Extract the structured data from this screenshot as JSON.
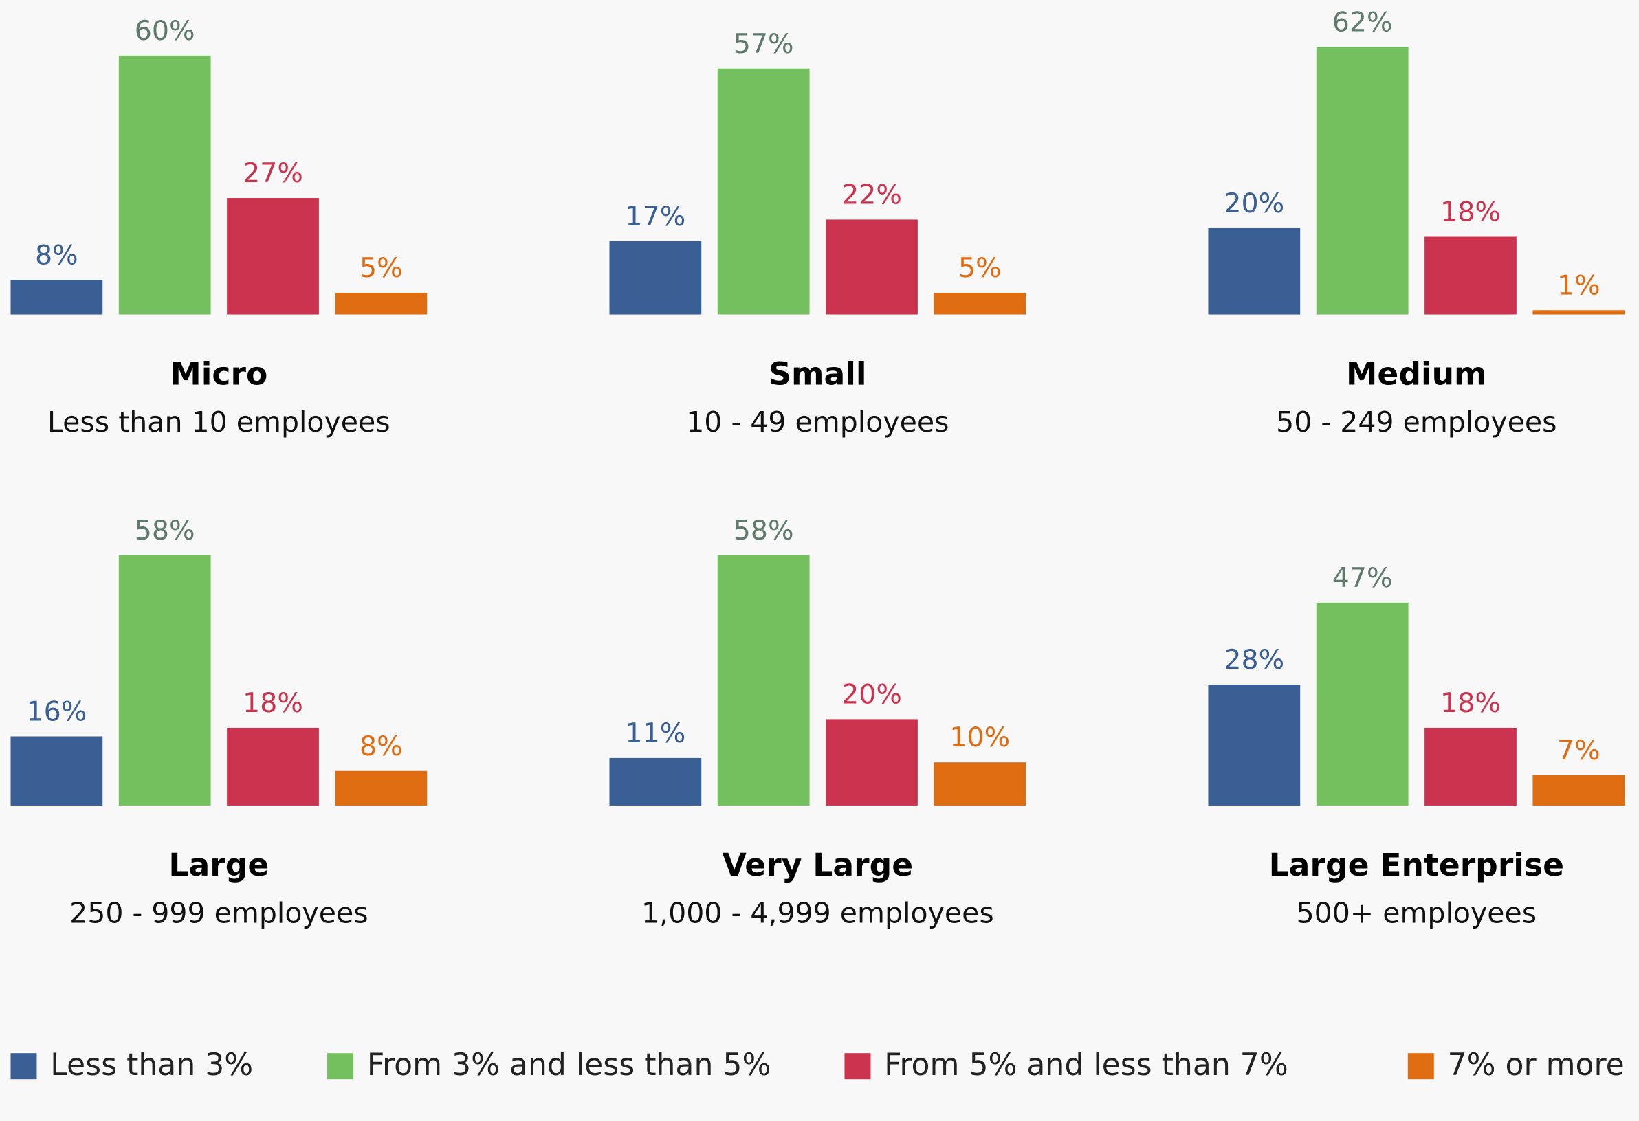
{
  "chart_data": {
    "type": "bar",
    "series": [
      {
        "name": "Less than 3%",
        "color": "#3a5f94",
        "label_color": "#3a5f94"
      },
      {
        "name": "From 3% and less than 5%",
        "color": "#74c05e",
        "label_color": "#5e7a6c"
      },
      {
        "name": "From 5% and less than 7%",
        "color": "#cc334e",
        "label_color": "#cc334e"
      },
      {
        "name": "7% or more",
        "color": "#e06c12",
        "label_color": "#e06c12"
      }
    ],
    "panels": [
      {
        "title": "Micro",
        "subtitle": "Less than 10 employees",
        "values": [
          8,
          60,
          27,
          5
        ],
        "value_labels": [
          "8%",
          "60%",
          "27%",
          "5%"
        ]
      },
      {
        "title": "Small",
        "subtitle": "10 - 49 employees",
        "values": [
          17,
          57,
          22,
          5
        ],
        "value_labels": [
          "17%",
          "57%",
          "22%",
          "5%"
        ]
      },
      {
        "title": "Medium",
        "subtitle": "50 - 249 employees",
        "values": [
          20,
          62,
          18,
          1
        ],
        "value_labels": [
          "20%",
          "62%",
          "18%",
          "1%"
        ]
      },
      {
        "title": "Large",
        "subtitle": "250 - 999 employees",
        "values": [
          16,
          58,
          18,
          8
        ],
        "value_labels": [
          "16%",
          "58%",
          "18%",
          "8%"
        ]
      },
      {
        "title": "Very Large",
        "subtitle": "1,000 - 4,999 employees",
        "values": [
          11,
          58,
          20,
          10
        ],
        "value_labels": [
          "11%",
          "58%",
          "20%",
          "10%"
        ]
      },
      {
        "title": "Large Enterprise",
        "subtitle": "500+ employees",
        "values": [
          28,
          47,
          18,
          7
        ],
        "value_labels": [
          "28%",
          "47%",
          "18%",
          "7%"
        ]
      }
    ]
  }
}
